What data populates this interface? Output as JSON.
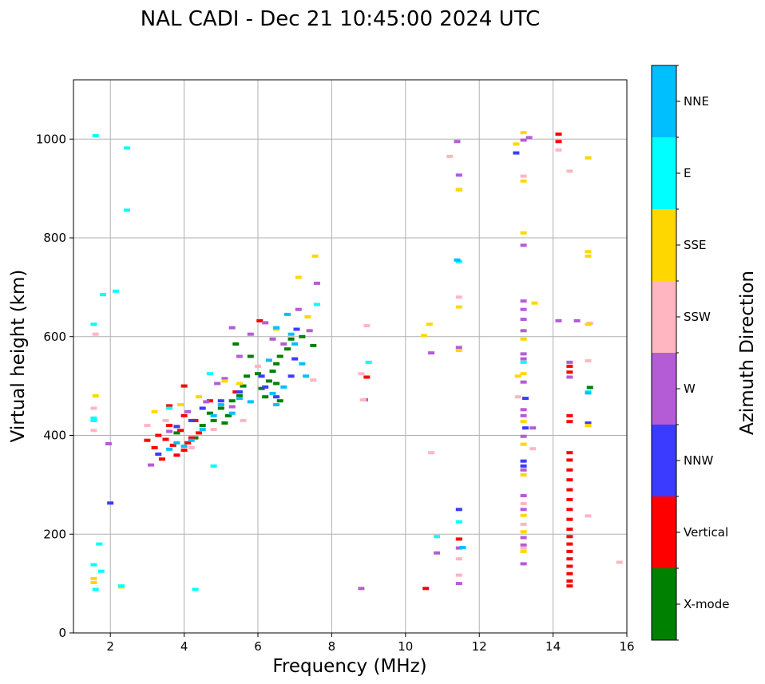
{
  "chart_data": {
    "type": "scatter",
    "title": "NAL CADI - Dec 21 10:45:00 2024 UTC",
    "xlabel": "Frequency (MHz)",
    "ylabel": "Virtual height (km)",
    "xlim": [
      1,
      16
    ],
    "ylim": [
      0,
      1120
    ],
    "xticks": [
      2,
      4,
      6,
      8,
      10,
      12,
      14,
      16
    ],
    "yticks": [
      0,
      200,
      400,
      600,
      800,
      1000
    ],
    "grid": true,
    "colorbar": {
      "label": "Azimuth Direction",
      "categories": [
        "X-mode",
        "Vertical",
        "NNW",
        "W",
        "SSW",
        "SSE",
        "E",
        "NNE"
      ],
      "colors": [
        "#008000",
        "#ff0000",
        "#3b3bff",
        "#b45cd6",
        "#ffb6c1",
        "#ffd700",
        "#00ffff",
        "#00bfff"
      ]
    },
    "series": [
      {
        "name": "X-mode",
        "points": [
          [
            3.8,
            405
          ],
          [
            4.3,
            395
          ],
          [
            4.5,
            420
          ],
          [
            4.8,
            430
          ],
          [
            5.0,
            455
          ],
          [
            5.2,
            440
          ],
          [
            5.3,
            470
          ],
          [
            5.5,
            480
          ],
          [
            5.6,
            500
          ],
          [
            5.7,
            520
          ],
          [
            5.8,
            560
          ],
          [
            6.0,
            525
          ],
          [
            6.1,
            495
          ],
          [
            6.2,
            478
          ],
          [
            6.3,
            510
          ],
          [
            6.4,
            530
          ],
          [
            6.5,
            545
          ],
          [
            6.6,
            560
          ],
          [
            6.8,
            575
          ],
          [
            7.2,
            600
          ],
          [
            7.5,
            582
          ],
          [
            4.7,
            445
          ],
          [
            5.1,
            425
          ],
          [
            5.4,
            585
          ],
          [
            6.9,
            595
          ],
          [
            6.5,
            505
          ],
          [
            6.6,
            470
          ],
          [
            15.0,
            497
          ]
        ]
      },
      {
        "name": "Vertical",
        "points": [
          [
            3.0,
            390
          ],
          [
            3.2,
            375
          ],
          [
            3.3,
            400
          ],
          [
            3.5,
            392
          ],
          [
            3.6,
            420
          ],
          [
            3.7,
            380
          ],
          [
            3.9,
            410
          ],
          [
            4.0,
            370
          ],
          [
            4.0,
            440
          ],
          [
            4.1,
            385
          ],
          [
            4.2,
            395
          ],
          [
            4.3,
            430
          ],
          [
            4.4,
            405
          ],
          [
            3.8,
            360
          ],
          [
            3.4,
            352
          ],
          [
            4.0,
            500
          ],
          [
            3.6,
            460
          ],
          [
            4.7,
            470
          ],
          [
            5.4,
            488
          ],
          [
            6.05,
            632
          ],
          [
            8.95,
            518
          ],
          [
            11.45,
            190
          ],
          [
            10.55,
            90
          ],
          [
            14.15,
            1010
          ],
          [
            14.15,
            995
          ],
          [
            14.45,
            540
          ],
          [
            14.45,
            528
          ],
          [
            14.45,
            440
          ],
          [
            14.45,
            428
          ],
          [
            14.45,
            365
          ],
          [
            14.45,
            350
          ],
          [
            14.45,
            330
          ],
          [
            14.45,
            310
          ],
          [
            14.45,
            290
          ],
          [
            14.45,
            270
          ],
          [
            14.45,
            250
          ],
          [
            14.45,
            230
          ],
          [
            14.45,
            210
          ],
          [
            14.45,
            195
          ],
          [
            14.45,
            180
          ],
          [
            14.45,
            165
          ],
          [
            14.45,
            150
          ],
          [
            14.45,
            135
          ],
          [
            14.45,
            120
          ],
          [
            14.45,
            105
          ],
          [
            14.45,
            95
          ]
        ]
      },
      {
        "name": "NNW",
        "points": [
          [
            3.3,
            362
          ],
          [
            3.8,
            418
          ],
          [
            4.2,
            430
          ],
          [
            4.5,
            455
          ],
          [
            5.0,
            470
          ],
          [
            5.5,
            488
          ],
          [
            6.1,
            520
          ],
          [
            6.2,
            498
          ],
          [
            6.5,
            478
          ],
          [
            6.9,
            520
          ],
          [
            7.0,
            555
          ],
          [
            2.0,
            263
          ],
          [
            11.45,
            250
          ],
          [
            13.0,
            972
          ],
          [
            13.2,
            348
          ],
          [
            13.2,
            338
          ],
          [
            13.25,
            475
          ],
          [
            13.25,
            415
          ],
          [
            14.95,
            425
          ],
          [
            7.05,
            615
          ]
        ]
      },
      {
        "name": "W",
        "points": [
          [
            3.1,
            340
          ],
          [
            3.6,
            408
          ],
          [
            4.1,
            448
          ],
          [
            4.6,
            468
          ],
          [
            4.9,
            505
          ],
          [
            5.1,
            515
          ],
          [
            5.3,
            458
          ],
          [
            5.5,
            560
          ],
          [
            5.8,
            605
          ],
          [
            6.2,
            628
          ],
          [
            6.4,
            595
          ],
          [
            6.7,
            585
          ],
          [
            7.1,
            655
          ],
          [
            7.4,
            612
          ],
          [
            1.95,
            383
          ],
          [
            8.8,
            90
          ],
          [
            8.9,
            472
          ],
          [
            10.7,
            567
          ],
          [
            10.85,
            162
          ],
          [
            11.4,
            995
          ],
          [
            11.45,
            927
          ],
          [
            11.45,
            578
          ],
          [
            11.45,
            172
          ],
          [
            11.45,
            100
          ],
          [
            13.2,
            672
          ],
          [
            13.2,
            655
          ],
          [
            13.2,
            635
          ],
          [
            13.2,
            612
          ],
          [
            13.2,
            565
          ],
          [
            13.2,
            555
          ],
          [
            13.2,
            508
          ],
          [
            13.2,
            452
          ],
          [
            13.2,
            440
          ],
          [
            13.2,
            398
          ],
          [
            13.2,
            330
          ],
          [
            13.2,
            278
          ],
          [
            13.2,
            250
          ],
          [
            13.2,
            193
          ],
          [
            13.2,
            178
          ],
          [
            13.2,
            140
          ],
          [
            13.2,
            785
          ],
          [
            13.2,
            998
          ],
          [
            13.35,
            1003
          ],
          [
            13.45,
            415
          ],
          [
            14.15,
            632
          ],
          [
            14.65,
            632
          ],
          [
            14.45,
            548
          ],
          [
            14.45,
            518
          ],
          [
            7.6,
            708
          ],
          [
            5.3,
            618
          ]
        ]
      },
      {
        "name": "SSW",
        "points": [
          [
            3.0,
            420
          ],
          [
            3.5,
            430
          ],
          [
            4.2,
            375
          ],
          [
            4.8,
            412
          ],
          [
            5.6,
            430
          ],
          [
            6.0,
            540
          ],
          [
            7.5,
            512
          ],
          [
            1.55,
            455
          ],
          [
            1.55,
            410
          ],
          [
            1.6,
            605
          ],
          [
            8.8,
            525
          ],
          [
            8.85,
            472
          ],
          [
            8.95,
            622
          ],
          [
            10.7,
            365
          ],
          [
            11.2,
            965
          ],
          [
            11.45,
            680
          ],
          [
            11.45,
            150
          ],
          [
            11.45,
            117
          ],
          [
            13.05,
            478
          ],
          [
            13.2,
            925
          ],
          [
            13.2,
            262
          ],
          [
            13.2,
            220
          ],
          [
            13.2,
            172
          ],
          [
            13.45,
            373
          ],
          [
            14.15,
            978
          ],
          [
            14.45,
            935
          ],
          [
            14.95,
            551
          ],
          [
            14.95,
            237
          ],
          [
            15.8,
            143
          ],
          [
            15.0,
            627
          ]
        ]
      },
      {
        "name": "SSE",
        "points": [
          [
            3.2,
            448
          ],
          [
            3.9,
            462
          ],
          [
            4.4,
            478
          ],
          [
            5.1,
            510
          ],
          [
            5.5,
            505
          ],
          [
            6.5,
            615
          ],
          [
            7.1,
            720
          ],
          [
            7.35,
            640
          ],
          [
            7.55,
            763
          ],
          [
            1.55,
            102
          ],
          [
            1.55,
            110
          ],
          [
            1.6,
            480
          ],
          [
            2.3,
            93
          ],
          [
            10.5,
            602
          ],
          [
            10.65,
            625
          ],
          [
            11.45,
            897
          ],
          [
            11.45,
            660
          ],
          [
            11.45,
            572
          ],
          [
            13.0,
            990
          ],
          [
            13.05,
            520
          ],
          [
            13.2,
            1013
          ],
          [
            13.2,
            915
          ],
          [
            13.2,
            810
          ],
          [
            13.2,
            595
          ],
          [
            13.2,
            525
          ],
          [
            13.2,
            428
          ],
          [
            13.2,
            382
          ],
          [
            13.2,
            320
          ],
          [
            13.2,
            238
          ],
          [
            13.2,
            205
          ],
          [
            13.2,
            165
          ],
          [
            13.5,
            668
          ],
          [
            14.95,
            962
          ],
          [
            14.95,
            772
          ],
          [
            14.95,
            763
          ],
          [
            14.95,
            625
          ],
          [
            14.95,
            420
          ],
          [
            11.45,
            898
          ]
        ]
      },
      {
        "name": "E",
        "points": [
          [
            1.6,
            1007
          ],
          [
            2.45,
            982
          ],
          [
            2.45,
            856
          ],
          [
            1.8,
            685
          ],
          [
            2.15,
            692
          ],
          [
            1.55,
            625
          ],
          [
            1.55,
            430
          ],
          [
            1.55,
            435
          ],
          [
            1.7,
            180
          ],
          [
            1.75,
            125
          ],
          [
            1.55,
            138
          ],
          [
            2.3,
            95
          ],
          [
            4.3,
            88
          ],
          [
            4.8,
            338
          ],
          [
            3.6,
            455
          ],
          [
            4.7,
            525
          ],
          [
            7.6,
            665
          ],
          [
            9.0,
            548
          ],
          [
            10.85,
            195
          ],
          [
            11.45,
            752
          ],
          [
            11.45,
            225
          ],
          [
            13.2,
            548
          ],
          [
            14.95,
            488
          ],
          [
            1.6,
            88
          ]
        ]
      },
      {
        "name": "NNE",
        "points": [
          [
            3.8,
            385
          ],
          [
            4.0,
            378
          ],
          [
            4.2,
            390
          ],
          [
            3.6,
            372
          ],
          [
            4.5,
            412
          ],
          [
            4.8,
            440
          ],
          [
            5.0,
            462
          ],
          [
            5.3,
            445
          ],
          [
            5.8,
            468
          ],
          [
            6.4,
            485
          ],
          [
            6.5,
            462
          ],
          [
            6.5,
            618
          ],
          [
            6.8,
            645
          ],
          [
            6.9,
            605
          ],
          [
            7.0,
            585
          ],
          [
            7.2,
            545
          ],
          [
            7.3,
            520
          ],
          [
            6.7,
            498
          ],
          [
            6.3,
            552
          ],
          [
            5.5,
            475
          ],
          [
            11.4,
            755
          ],
          [
            11.55,
            173
          ],
          [
            14.95,
            486
          ]
        ]
      }
    ]
  }
}
